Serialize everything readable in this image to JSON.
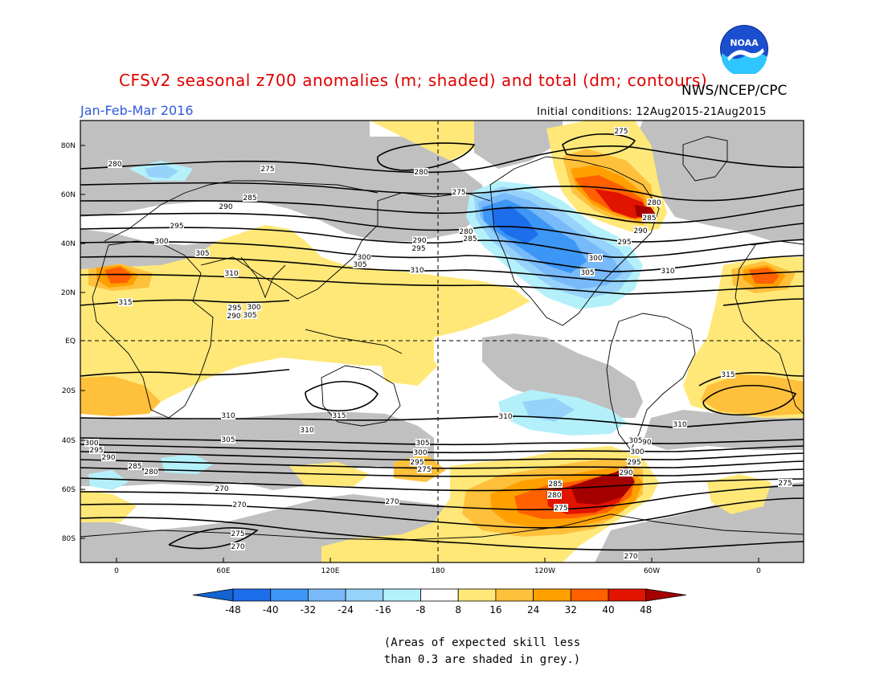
{
  "map": {
    "title": "CFSv2 seasonal z700 anomalies (m; shaded) and total (dm; contours)",
    "season": "Jan-Feb-Mar 2016",
    "initial_conditions": "Initial conditions: 12Aug2015-21Aug2015",
    "agency": "NWS/NCEP/CPC",
    "logo_text": "NOAA",
    "lat_labels": [
      "80N",
      "60N",
      "40N",
      "20N",
      "EQ",
      "20S",
      "40S",
      "60S",
      "80S"
    ],
    "lon_labels": [
      "0",
      "60E",
      "120E",
      "180",
      "120W",
      "60W",
      "0"
    ],
    "colors": {
      "skill_grey": "#c0c0c0",
      "neg48": "#1464d2",
      "neg40": "#1e6eeb",
      "neg32": "#3c96f5",
      "neg24": "#78b9fa",
      "neg16": "#96d2fa",
      "neg8": "#b4f0fa",
      "neutral": "#ffffff",
      "pos8": "#ffe878",
      "pos16": "#ffc03c",
      "pos24": "#ffa000",
      "pos32": "#ff6000",
      "pos40": "#e11400",
      "pos48": "#a50000"
    }
  },
  "contours": {
    "labels": [
      "280",
      "275",
      "285",
      "290",
      "295",
      "300",
      "305",
      "310",
      "315",
      "280",
      "275",
      "280",
      "285",
      "290",
      "295",
      "300",
      "305",
      "310",
      "275",
      "280",
      "285",
      "290",
      "295",
      "300",
      "305",
      "310",
      "315",
      "315",
      "310",
      "310",
      "310",
      "310",
      "305",
      "300",
      "295",
      "290",
      "285",
      "280",
      "275",
      "270",
      "270",
      "275",
      "270",
      "275",
      "270",
      "305",
      "300",
      "295",
      "290",
      "285",
      "280",
      "275",
      "270",
      "305",
      "300",
      "295",
      "290",
      "300",
      "305",
      "295",
      "290"
    ]
  },
  "colorbar": {
    "ticks": [
      "-48",
      "-40",
      "-32",
      "-24",
      "-16",
      "-8",
      "8",
      "16",
      "24",
      "32",
      "40",
      "48"
    ]
  },
  "skill_note": "(Areas of expected skill less\nthan 0.3 are shaded in grey.)"
}
